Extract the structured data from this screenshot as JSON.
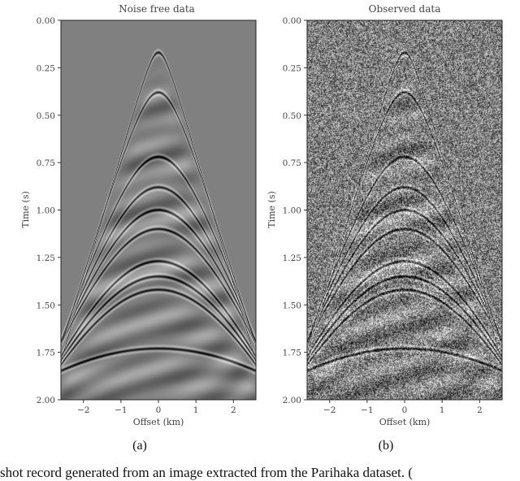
{
  "chart_data": [
    {
      "type": "heatmap",
      "panel_label": "(a)",
      "title": "Noise free data",
      "xlabel": "Offset (km)",
      "ylabel": "Time (s)",
      "xlim": [
        -2.6,
        2.6
      ],
      "ylim": [
        2.0,
        0.0
      ],
      "x_ticks": [
        -2,
        -1,
        0,
        1,
        2
      ],
      "y_ticks": [
        0.0,
        0.25,
        0.5,
        0.75,
        1.0,
        1.25,
        1.5,
        1.75,
        2.0
      ],
      "x_tick_labels": [
        "−2",
        "−1",
        "0",
        "1",
        "2"
      ],
      "y_tick_labels": [
        "0.00",
        "0.25",
        "0.50",
        "0.75",
        "1.00",
        "1.25",
        "1.50",
        "1.75",
        "2.00"
      ],
      "noise": false,
      "colormap": "gray",
      "events": [
        {
          "t0": 0.17,
          "v": 1.45
        },
        {
          "t0": 0.38,
          "v": 1.55
        },
        {
          "t0": 0.72,
          "v": 1.7
        },
        {
          "t0": 0.88,
          "v": 1.8
        },
        {
          "t0": 1.0,
          "v": 1.9
        },
        {
          "t0": 1.1,
          "v": 2.0
        },
        {
          "t0": 1.27,
          "v": 2.1
        },
        {
          "t0": 1.35,
          "v": 2.2
        },
        {
          "t0": 1.42,
          "v": 2.3
        },
        {
          "t0": 1.73,
          "v": 4.0
        }
      ]
    },
    {
      "type": "heatmap",
      "panel_label": "(b)",
      "title": "Observed data",
      "xlabel": "Offset (km)",
      "ylabel": "Time (s)",
      "xlim": [
        -2.6,
        2.6
      ],
      "ylim": [
        2.0,
        0.0
      ],
      "x_ticks": [
        -2,
        -1,
        0,
        1,
        2
      ],
      "y_ticks": [
        0.0,
        0.25,
        0.5,
        0.75,
        1.0,
        1.25,
        1.5,
        1.75,
        2.0
      ],
      "x_tick_labels": [
        "−2",
        "−1",
        "0",
        "1",
        "2"
      ],
      "y_tick_labels": [
        "0.00",
        "0.25",
        "0.50",
        "0.75",
        "1.00",
        "1.25",
        "1.50",
        "1.75",
        "2.00"
      ],
      "noise": true,
      "colormap": "gray",
      "events": [
        {
          "t0": 0.17,
          "v": 1.45
        },
        {
          "t0": 0.38,
          "v": 1.55
        },
        {
          "t0": 0.72,
          "v": 1.7
        },
        {
          "t0": 0.88,
          "v": 1.8
        },
        {
          "t0": 1.0,
          "v": 1.9
        },
        {
          "t0": 1.1,
          "v": 2.0
        },
        {
          "t0": 1.27,
          "v": 2.1
        },
        {
          "t0": 1.35,
          "v": 2.2
        },
        {
          "t0": 1.42,
          "v": 2.3
        },
        {
          "t0": 1.73,
          "v": 4.0
        }
      ]
    }
  ],
  "caption_fragment": "shot record generated from an image extracted from the Parihaka dataset. ("
}
